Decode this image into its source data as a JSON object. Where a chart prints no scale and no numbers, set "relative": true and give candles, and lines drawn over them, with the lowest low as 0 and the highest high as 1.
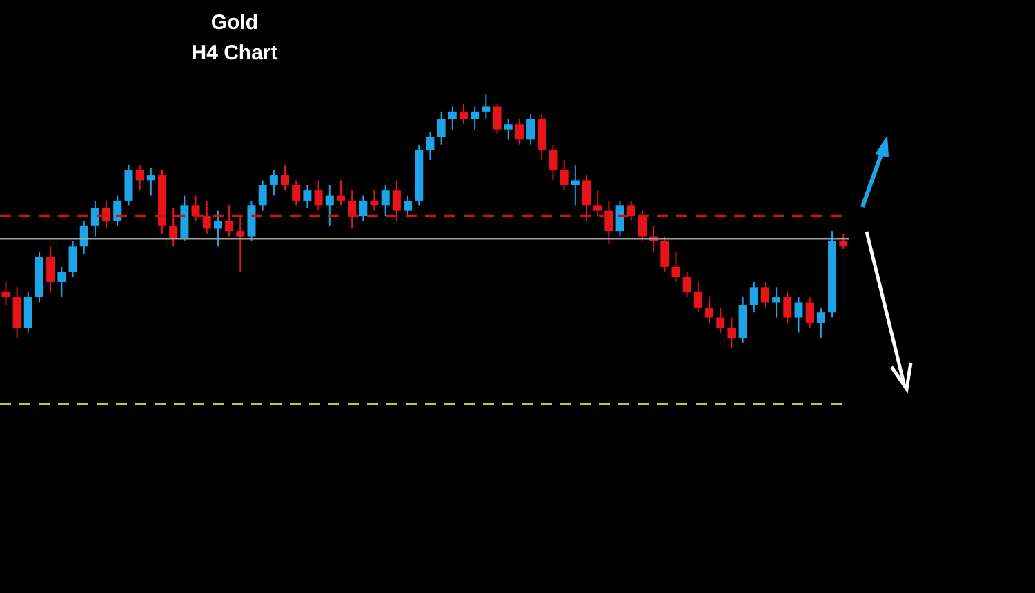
{
  "chart_data": {
    "type": "candlestick",
    "title": "Gold",
    "subtitle": "H4 Chart",
    "relative": true,
    "categories": [
      null,
      null,
      null,
      null,
      null,
      null,
      null,
      null,
      null,
      null,
      null,
      null,
      null,
      null,
      null,
      null,
      null,
      null,
      null,
      null,
      null,
      null,
      null,
      null,
      null,
      null,
      null,
      null,
      null,
      null,
      null,
      null,
      null,
      null,
      null,
      null,
      null,
      null,
      null,
      null,
      null,
      null,
      null,
      null,
      null,
      null,
      null,
      null,
      null,
      null,
      null,
      null,
      null,
      null,
      null,
      null,
      null,
      null,
      null,
      null,
      null,
      null,
      null,
      null,
      null,
      null,
      null,
      null,
      null,
      null,
      null,
      null,
      null,
      null,
      null,
      null
    ],
    "ohlc": [
      [
        0.22,
        0.26,
        0.17,
        0.2
      ],
      [
        0.2,
        0.24,
        0.04,
        0.08
      ],
      [
        0.08,
        0.22,
        0.06,
        0.2
      ],
      [
        0.2,
        0.38,
        0.18,
        0.36
      ],
      [
        0.36,
        0.4,
        0.22,
        0.26
      ],
      [
        0.26,
        0.32,
        0.2,
        0.3
      ],
      [
        0.3,
        0.42,
        0.28,
        0.4
      ],
      [
        0.4,
        0.5,
        0.37,
        0.48
      ],
      [
        0.48,
        0.58,
        0.44,
        0.55
      ],
      [
        0.55,
        0.58,
        0.47,
        0.5
      ],
      [
        0.5,
        0.6,
        0.48,
        0.58
      ],
      [
        0.58,
        0.72,
        0.56,
        0.7
      ],
      [
        0.7,
        0.72,
        0.62,
        0.66
      ],
      [
        0.66,
        0.71,
        0.6,
        0.68
      ],
      [
        0.68,
        0.7,
        0.45,
        0.48
      ],
      [
        0.48,
        0.55,
        0.4,
        0.43
      ],
      [
        0.43,
        0.6,
        0.42,
        0.56
      ],
      [
        0.56,
        0.6,
        0.5,
        0.52
      ],
      [
        0.52,
        0.58,
        0.45,
        0.47
      ],
      [
        0.47,
        0.54,
        0.4,
        0.5
      ],
      [
        0.5,
        0.56,
        0.44,
        0.46
      ],
      [
        0.46,
        0.52,
        0.3,
        0.44
      ],
      [
        0.44,
        0.58,
        0.42,
        0.56
      ],
      [
        0.56,
        0.66,
        0.54,
        0.64
      ],
      [
        0.64,
        0.7,
        0.6,
        0.68
      ],
      [
        0.68,
        0.72,
        0.62,
        0.64
      ],
      [
        0.64,
        0.66,
        0.56,
        0.58
      ],
      [
        0.58,
        0.64,
        0.55,
        0.62
      ],
      [
        0.62,
        0.66,
        0.54,
        0.56
      ],
      [
        0.56,
        0.64,
        0.48,
        0.6
      ],
      [
        0.6,
        0.66,
        0.56,
        0.58
      ],
      [
        0.58,
        0.62,
        0.47,
        0.52
      ],
      [
        0.52,
        0.6,
        0.5,
        0.58
      ],
      [
        0.58,
        0.62,
        0.54,
        0.56
      ],
      [
        0.56,
        0.64,
        0.52,
        0.62
      ],
      [
        0.62,
        0.66,
        0.5,
        0.54
      ],
      [
        0.54,
        0.6,
        0.52,
        0.58
      ],
      [
        0.58,
        0.8,
        0.56,
        0.78
      ],
      [
        0.78,
        0.85,
        0.74,
        0.83
      ],
      [
        0.83,
        0.93,
        0.8,
        0.9
      ],
      [
        0.9,
        0.95,
        0.86,
        0.93
      ],
      [
        0.93,
        0.96,
        0.88,
        0.9
      ],
      [
        0.9,
        0.95,
        0.86,
        0.93
      ],
      [
        0.93,
        1,
        0.9,
        0.95
      ],
      [
        0.95,
        0.96,
        0.84,
        0.86
      ],
      [
        0.86,
        0.9,
        0.82,
        0.88
      ],
      [
        0.88,
        0.9,
        0.8,
        0.82
      ],
      [
        0.82,
        0.92,
        0.8,
        0.9
      ],
      [
        0.9,
        0.92,
        0.74,
        0.78
      ],
      [
        0.78,
        0.8,
        0.66,
        0.7
      ],
      [
        0.7,
        0.74,
        0.62,
        0.64
      ],
      [
        0.64,
        0.72,
        0.56,
        0.66
      ],
      [
        0.66,
        0.68,
        0.5,
        0.56
      ],
      [
        0.56,
        0.62,
        0.52,
        0.54
      ],
      [
        0.54,
        0.58,
        0.41,
        0.46
      ],
      [
        0.46,
        0.58,
        0.44,
        0.56
      ],
      [
        0.56,
        0.58,
        0.5,
        0.52
      ],
      [
        0.52,
        0.54,
        0.42,
        0.44
      ],
      [
        0.44,
        0.48,
        0.38,
        0.42
      ],
      [
        0.42,
        0.44,
        0.3,
        0.32
      ],
      [
        0.32,
        0.38,
        0.26,
        0.28
      ],
      [
        0.28,
        0.3,
        0.2,
        0.22
      ],
      [
        0.22,
        0.26,
        0.14,
        0.16
      ],
      [
        0.16,
        0.2,
        0.1,
        0.12
      ],
      [
        0.12,
        0.16,
        0.06,
        0.08
      ],
      [
        0.08,
        0.12,
        0.0,
        0.04
      ],
      [
        0.04,
        0.2,
        0.02,
        0.17
      ],
      [
        0.17,
        0.26,
        0.14,
        0.24
      ],
      [
        0.24,
        0.26,
        0.16,
        0.18
      ],
      [
        0.18,
        0.24,
        0.12,
        0.2
      ],
      [
        0.2,
        0.22,
        0.1,
        0.12
      ],
      [
        0.12,
        0.2,
        0.06,
        0.18
      ],
      [
        0.18,
        0.2,
        0.08,
        0.1
      ],
      [
        0.1,
        0.16,
        0.04,
        0.14
      ],
      [
        0.14,
        0.46,
        0.12,
        0.42
      ],
      [
        0.42,
        0.45,
        0.39,
        0.4
      ]
    ],
    "colors": [
      "#e8141a",
      "#e8141a",
      "#1fa3e8",
      "#1fa3e8",
      "#e8141a",
      "#1fa3e8",
      "#1fa3e8",
      "#1fa3e8",
      "#1fa3e8",
      "#e8141a",
      "#1fa3e8",
      "#1fa3e8",
      "#e8141a",
      "#1fa3e8",
      "#e8141a",
      "#e8141a",
      "#1fa3e8",
      "#e8141a",
      "#e8141a",
      "#1fa3e8",
      "#e8141a",
      "#e8141a",
      "#1fa3e8",
      "#1fa3e8",
      "#1fa3e8",
      "#e8141a",
      "#e8141a",
      "#1fa3e8",
      "#e8141a",
      "#1fa3e8",
      "#e8141a",
      "#e8141a",
      "#1fa3e8",
      "#e8141a",
      "#1fa3e8",
      "#e8141a",
      "#1fa3e8",
      "#1fa3e8",
      "#1fa3e8",
      "#1fa3e8",
      "#1fa3e8",
      "#e8141a",
      "#1fa3e8",
      "#1fa3e8",
      "#e8141a",
      "#1fa3e8",
      "#e8141a",
      "#1fa3e8",
      "#e8141a",
      "#e8141a",
      "#e8141a",
      "#1fa3e8",
      "#e8141a",
      "#e8141a",
      "#e8141a",
      "#1fa3e8",
      "#e8141a",
      "#e8141a",
      "#e8141a",
      "#e8141a",
      "#e8141a",
      "#e8141a",
      "#e8141a",
      "#e8141a",
      "#e8141a",
      "#e8141a",
      "#1fa3e8",
      "#1fa3e8",
      "#e8141a",
      "#1fa3e8",
      "#e8141a",
      "#1fa3e8",
      "#e8141a",
      "#1fa3e8",
      "#1fa3e8",
      "#e8141a"
    ],
    "ref_lines": [
      {
        "axis": "y",
        "value": 0.52,
        "color": "#d01414",
        "line_style": "dashed"
      },
      {
        "axis": "y",
        "value": 0.43,
        "color": "#a0a0a0",
        "line_style": "solid"
      },
      {
        "axis": "y",
        "value": -0.22,
        "color": "#c8c81e",
        "line_style": "dashed"
      }
    ]
  }
}
